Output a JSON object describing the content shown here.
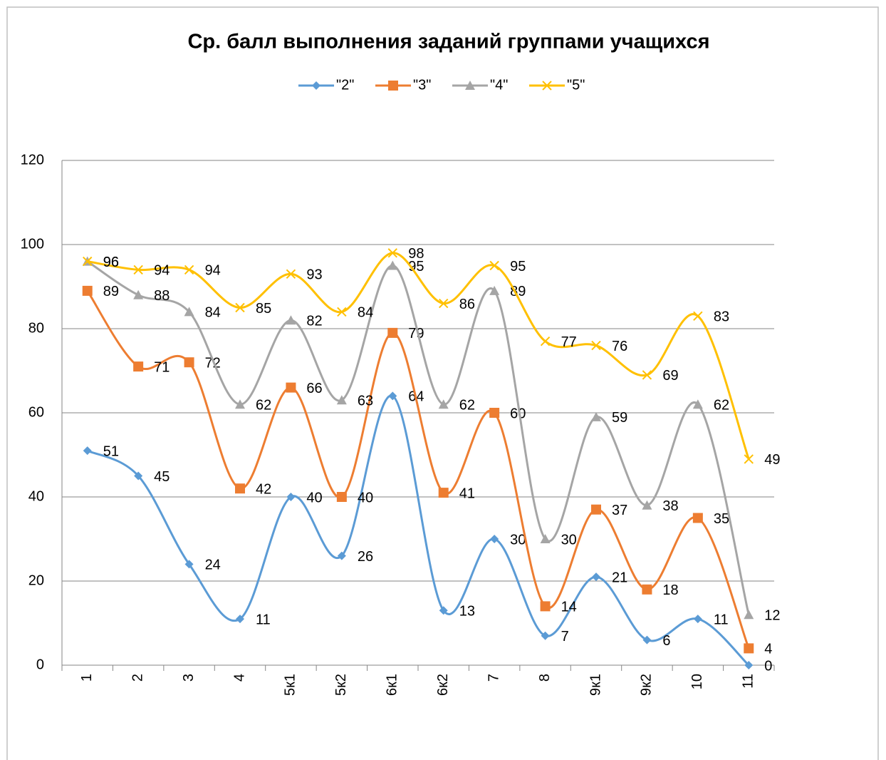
{
  "chart_data": {
    "type": "line",
    "title": "Ср. балл выполнения заданий группами учащихся",
    "categories": [
      "1",
      "2",
      "3",
      "4",
      "5к1",
      "5к2",
      "6к1",
      "6к2",
      "7",
      "8",
      "9к1",
      "9к2",
      "10",
      "11"
    ],
    "series": [
      {
        "name": "\"2\"",
        "color": "#5b9bd5",
        "marker": "diamond",
        "values": [
          51,
          45,
          24,
          11,
          40,
          26,
          64,
          13,
          30,
          7,
          21,
          6,
          11,
          0
        ]
      },
      {
        "name": "\"3\"",
        "color": "#ed7d31",
        "marker": "square",
        "values": [
          89,
          71,
          72,
          42,
          66,
          40,
          79,
          41,
          60,
          14,
          37,
          18,
          35,
          4
        ]
      },
      {
        "name": "\"4\"",
        "color": "#a5a5a5",
        "marker": "triangle",
        "values": [
          96,
          88,
          84,
          62,
          82,
          63,
          95,
          62,
          89,
          30,
          59,
          38,
          62,
          12
        ]
      },
      {
        "name": "\"5\"",
        "color": "#ffc000",
        "marker": "x",
        "values": [
          96,
          94,
          94,
          85,
          93,
          84,
          98,
          86,
          95,
          77,
          76,
          69,
          83,
          49
        ]
      }
    ],
    "ylim": [
      0,
      120
    ],
    "yticks": [
      0,
      20,
      40,
      60,
      80,
      100,
      120
    ],
    "grid": true,
    "smooth": true,
    "legend": "top"
  }
}
